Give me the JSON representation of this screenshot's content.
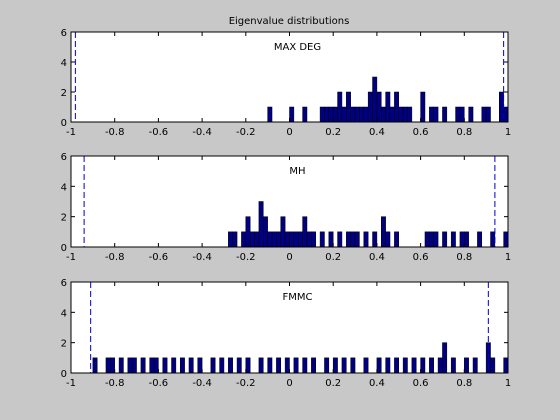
{
  "figure": {
    "title": "Eigenvalue distributions"
  },
  "colors": {
    "background": "#c8c8c8",
    "axes_bg": "#ffffff",
    "bar_fill": "#000080",
    "bar_edge": "#000000",
    "dashed_line": "#0000cc"
  },
  "chart_data": [
    {
      "type": "bar",
      "label": "MAX DEG",
      "xlim": [
        -1,
        1
      ],
      "ylim": [
        0,
        6
      ],
      "xticks": [
        "-1",
        "-0.8",
        "-0.6",
        "-0.4",
        "-0.2",
        "0",
        "0.2",
        "0.4",
        "0.6",
        "0.8",
        "1"
      ],
      "yticks": [
        "0",
        "2",
        "4",
        "6"
      ],
      "bin_width": 0.02,
      "dashed_lines": [
        -0.98,
        0.98
      ],
      "bars": [
        {
          "x": -0.09,
          "h": 1
        },
        {
          "x": 0.01,
          "h": 1
        },
        {
          "x": 0.07,
          "h": 1
        },
        {
          "x": 0.15,
          "h": 1
        },
        {
          "x": 0.17,
          "h": 1
        },
        {
          "x": 0.19,
          "h": 1
        },
        {
          "x": 0.21,
          "h": 1
        },
        {
          "x": 0.23,
          "h": 2
        },
        {
          "x": 0.25,
          "h": 1
        },
        {
          "x": 0.27,
          "h": 2
        },
        {
          "x": 0.29,
          "h": 1
        },
        {
          "x": 0.31,
          "h": 1
        },
        {
          "x": 0.33,
          "h": 1
        },
        {
          "x": 0.35,
          "h": 1
        },
        {
          "x": 0.37,
          "h": 2
        },
        {
          "x": 0.39,
          "h": 3
        },
        {
          "x": 0.41,
          "h": 2
        },
        {
          "x": 0.43,
          "h": 1
        },
        {
          "x": 0.45,
          "h": 2
        },
        {
          "x": 0.47,
          "h": 1
        },
        {
          "x": 0.49,
          "h": 2
        },
        {
          "x": 0.51,
          "h": 1
        },
        {
          "x": 0.53,
          "h": 1
        },
        {
          "x": 0.55,
          "h": 1
        },
        {
          "x": 0.61,
          "h": 2
        },
        {
          "x": 0.65,
          "h": 1
        },
        {
          "x": 0.67,
          "h": 1
        },
        {
          "x": 0.71,
          "h": 1
        },
        {
          "x": 0.77,
          "h": 1
        },
        {
          "x": 0.79,
          "h": 1
        },
        {
          "x": 0.83,
          "h": 1
        },
        {
          "x": 0.89,
          "h": 1
        },
        {
          "x": 0.91,
          "h": 1
        },
        {
          "x": 0.97,
          "h": 2
        },
        {
          "x": 0.99,
          "h": 1
        }
      ]
    },
    {
      "type": "bar",
      "label": "MH",
      "xlim": [
        -1,
        1
      ],
      "ylim": [
        0,
        6
      ],
      "xticks": [
        "-1",
        "-0.8",
        "-0.6",
        "-0.4",
        "-0.2",
        "0",
        "0.2",
        "0.4",
        "0.6",
        "0.8",
        "1"
      ],
      "yticks": [
        "0",
        "2",
        "4",
        "6"
      ],
      "bin_width": 0.02,
      "dashed_lines": [
        -0.94,
        0.94
      ],
      "bars": [
        {
          "x": -0.27,
          "h": 1
        },
        {
          "x": -0.25,
          "h": 1
        },
        {
          "x": -0.21,
          "h": 1
        },
        {
          "x": -0.19,
          "h": 2
        },
        {
          "x": -0.17,
          "h": 1
        },
        {
          "x": -0.15,
          "h": 1
        },
        {
          "x": -0.13,
          "h": 3
        },
        {
          "x": -0.11,
          "h": 2
        },
        {
          "x": -0.09,
          "h": 1
        },
        {
          "x": -0.07,
          "h": 1
        },
        {
          "x": -0.05,
          "h": 1
        },
        {
          "x": -0.03,
          "h": 2
        },
        {
          "x": -0.01,
          "h": 1
        },
        {
          "x": 0.01,
          "h": 1
        },
        {
          "x": 0.03,
          "h": 1
        },
        {
          "x": 0.05,
          "h": 1
        },
        {
          "x": 0.07,
          "h": 2
        },
        {
          "x": 0.09,
          "h": 1
        },
        {
          "x": 0.11,
          "h": 1
        },
        {
          "x": 0.15,
          "h": 1
        },
        {
          "x": 0.19,
          "h": 1
        },
        {
          "x": 0.23,
          "h": 1
        },
        {
          "x": 0.27,
          "h": 1
        },
        {
          "x": 0.29,
          "h": 1
        },
        {
          "x": 0.31,
          "h": 1
        },
        {
          "x": 0.35,
          "h": 1
        },
        {
          "x": 0.39,
          "h": 1
        },
        {
          "x": 0.43,
          "h": 2
        },
        {
          "x": 0.45,
          "h": 1
        },
        {
          "x": 0.49,
          "h": 1
        },
        {
          "x": 0.63,
          "h": 1
        },
        {
          "x": 0.65,
          "h": 1
        },
        {
          "x": 0.67,
          "h": 1
        },
        {
          "x": 0.71,
          "h": 1
        },
        {
          "x": 0.75,
          "h": 1
        },
        {
          "x": 0.79,
          "h": 1
        },
        {
          "x": 0.81,
          "h": 1
        },
        {
          "x": 0.87,
          "h": 1
        },
        {
          "x": 0.93,
          "h": 1
        },
        {
          "x": 0.99,
          "h": 1
        }
      ]
    },
    {
      "type": "bar",
      "label": "FMMC",
      "xlim": [
        -1,
        1
      ],
      "ylim": [
        0,
        6
      ],
      "xticks": [
        "-1",
        "-0.8",
        "-0.6",
        "-0.4",
        "-0.2",
        "0",
        "0.2",
        "0.4",
        "0.6",
        "0.8",
        "1"
      ],
      "yticks": [
        "0",
        "2",
        "4",
        "6"
      ],
      "bin_width": 0.02,
      "dashed_lines": [
        -0.91,
        0.91
      ],
      "bars": [
        {
          "x": -0.89,
          "h": 1
        },
        {
          "x": -0.83,
          "h": 1
        },
        {
          "x": -0.81,
          "h": 1
        },
        {
          "x": -0.77,
          "h": 1
        },
        {
          "x": -0.73,
          "h": 1
        },
        {
          "x": -0.71,
          "h": 1
        },
        {
          "x": -0.67,
          "h": 1
        },
        {
          "x": -0.63,
          "h": 1
        },
        {
          "x": -0.61,
          "h": 1
        },
        {
          "x": -0.57,
          "h": 1
        },
        {
          "x": -0.53,
          "h": 1
        },
        {
          "x": -0.49,
          "h": 1
        },
        {
          "x": -0.45,
          "h": 1
        },
        {
          "x": -0.41,
          "h": 1
        },
        {
          "x": -0.35,
          "h": 1
        },
        {
          "x": -0.31,
          "h": 1
        },
        {
          "x": -0.27,
          "h": 1
        },
        {
          "x": -0.23,
          "h": 1
        },
        {
          "x": -0.19,
          "h": 1
        },
        {
          "x": -0.13,
          "h": 1
        },
        {
          "x": -0.09,
          "h": 1
        },
        {
          "x": -0.05,
          "h": 1
        },
        {
          "x": -0.01,
          "h": 1
        },
        {
          "x": 0.03,
          "h": 1
        },
        {
          "x": 0.07,
          "h": 1
        },
        {
          "x": 0.11,
          "h": 1
        },
        {
          "x": 0.17,
          "h": 1
        },
        {
          "x": 0.21,
          "h": 1
        },
        {
          "x": 0.25,
          "h": 1
        },
        {
          "x": 0.29,
          "h": 1
        },
        {
          "x": 0.35,
          "h": 1
        },
        {
          "x": 0.41,
          "h": 1
        },
        {
          "x": 0.45,
          "h": 1
        },
        {
          "x": 0.49,
          "h": 1
        },
        {
          "x": 0.53,
          "h": 1
        },
        {
          "x": 0.57,
          "h": 1
        },
        {
          "x": 0.61,
          "h": 1
        },
        {
          "x": 0.65,
          "h": 1
        },
        {
          "x": 0.69,
          "h": 1
        },
        {
          "x": 0.71,
          "h": 2
        },
        {
          "x": 0.75,
          "h": 1
        },
        {
          "x": 0.81,
          "h": 1
        },
        {
          "x": 0.85,
          "h": 1
        },
        {
          "x": 0.91,
          "h": 2
        },
        {
          "x": 0.93,
          "h": 1
        },
        {
          "x": 0.99,
          "h": 1
        }
      ]
    }
  ]
}
